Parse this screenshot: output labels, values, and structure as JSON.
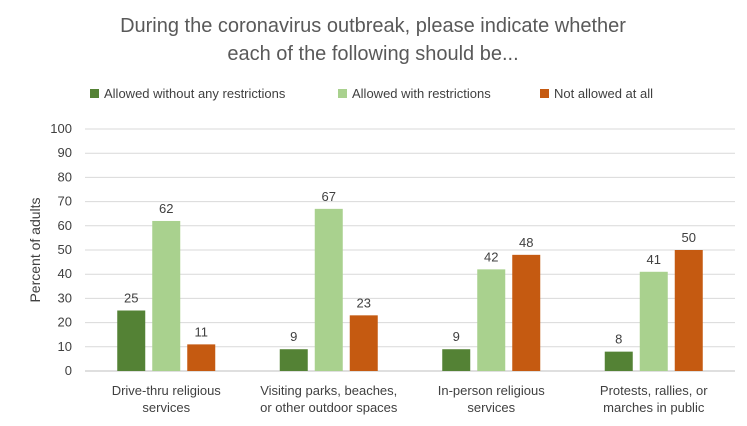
{
  "chart_data": {
    "type": "bar",
    "title_lines": [
      "During the coronavirus outbreak, please indicate whether",
      "each of the following should be..."
    ],
    "ylabel": "Percent of adults",
    "xlabel": "",
    "ylim": [
      0,
      100
    ],
    "yticks": [
      0,
      10,
      20,
      30,
      40,
      50,
      60,
      70,
      80,
      90,
      100
    ],
    "grid": true,
    "legend_position": "top",
    "categories": [
      [
        "Drive-thru religious",
        "services"
      ],
      [
        "Visiting parks, beaches,",
        "or other outdoor spaces"
      ],
      [
        "In-person religious",
        "services"
      ],
      [
        "Protests, rallies, or",
        "marches in public"
      ]
    ],
    "series": [
      {
        "name": "Allowed without any restrictions",
        "color": "#548235",
        "values": [
          25,
          9,
          9,
          8
        ]
      },
      {
        "name": "Allowed with restrictions",
        "color": "#a9d18e",
        "values": [
          62,
          67,
          42,
          41
        ]
      },
      {
        "name": "Not allowed at all",
        "color": "#c55a11",
        "values": [
          11,
          23,
          48,
          50
        ]
      }
    ]
  }
}
